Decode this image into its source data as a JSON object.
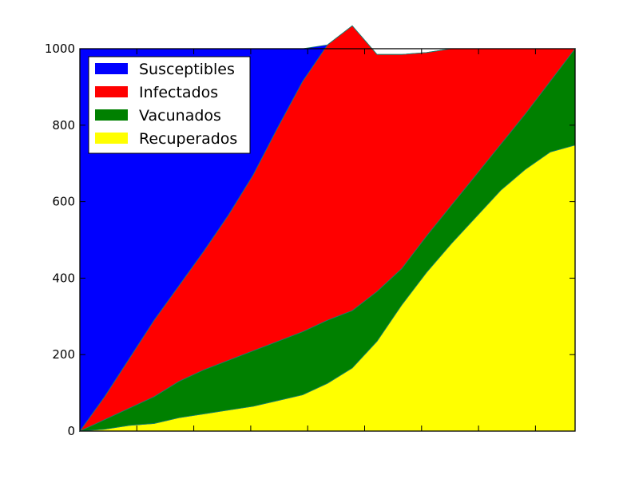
{
  "chart_data": {
    "type": "area",
    "stacked": true,
    "title": "",
    "xlabel": "",
    "ylabel": "",
    "ylim": [
      0,
      1000
    ],
    "yticks": [
      0,
      200,
      400,
      600,
      800,
      1000
    ],
    "xlim": [
      0,
      100
    ],
    "x_tick_positions": [
      0,
      11.5,
      23,
      34.5,
      46,
      57.5,
      69,
      80.5,
      92,
      100
    ],
    "x_tick_labels_visible": false,
    "grid": false,
    "legend_position": "top-left",
    "x": [
      0,
      5,
      10,
      15,
      20,
      25,
      30,
      35,
      40,
      45,
      50,
      55,
      60,
      65,
      70,
      75,
      80,
      85,
      90,
      95,
      100
    ],
    "series": [
      {
        "name": "Recuperados",
        "color": "#ffff00",
        "values": [
          0,
          5,
          15,
          20,
          35,
          45,
          55,
          65,
          80,
          95,
          125,
          165,
          235,
          330,
          415,
          490,
          560,
          630,
          685,
          730,
          748
        ]
      },
      {
        "name": "Vacunados",
        "color": "#008000",
        "values": [
          0,
          25,
          45,
          70,
          95,
          115,
          130,
          145,
          155,
          165,
          165,
          150,
          130,
          95,
          95,
          100,
          110,
          120,
          145,
          185,
          252
        ]
      },
      {
        "name": "Infectados",
        "color": "#ff0000",
        "values": [
          0,
          60,
          130,
          200,
          250,
          310,
          380,
          460,
          560,
          655,
          720,
          745,
          620,
          560,
          480,
          410,
          330,
          250,
          170,
          85,
          0
        ]
      },
      {
        "name": "Susceptibles",
        "color": "#0000ff",
        "values": [
          1000,
          910,
          810,
          710,
          620,
          530,
          435,
          330,
          205,
          85,
          0,
          0,
          0,
          0,
          0,
          0,
          0,
          0,
          0,
          0,
          0
        ]
      }
    ],
    "legend_order": [
      "Susceptibles",
      "Infectados",
      "Vacunados",
      "Recuperados"
    ]
  }
}
